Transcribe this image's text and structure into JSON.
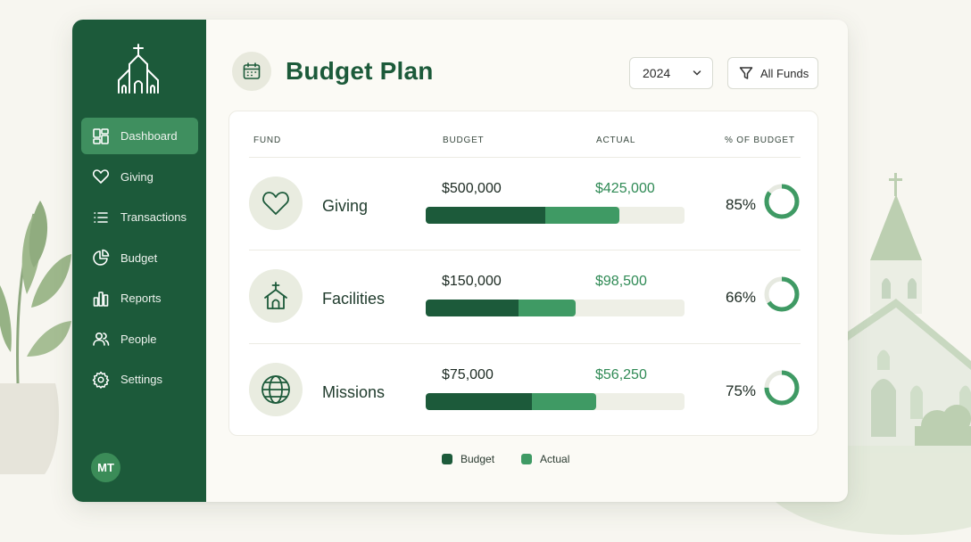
{
  "colors": {
    "sidebar": "#1c5a3a",
    "active_nav": "#3f8f5f",
    "budget": "#1c5a3a",
    "actual": "#3f9a64",
    "track": "#eeefe6"
  },
  "sidebar": {
    "logo_icon": "church-icon",
    "items": [
      {
        "label": "Dashboard",
        "icon": "dashboard-icon",
        "active": true
      },
      {
        "label": "Giving",
        "icon": "heart-icon",
        "active": false
      },
      {
        "label": "Transactions",
        "icon": "list-icon",
        "active": false
      },
      {
        "label": "Budget",
        "icon": "pie-chart-icon",
        "active": false
      },
      {
        "label": "Reports",
        "icon": "bar-chart-icon",
        "active": false
      },
      {
        "label": "People",
        "icon": "people-icon",
        "active": false
      },
      {
        "label": "Settings",
        "icon": "gear-icon",
        "active": false
      }
    ],
    "avatar_initials": "MT"
  },
  "header": {
    "icon": "calendar-icon",
    "title": "Budget Plan",
    "year": "2024",
    "filter_label": "All Funds"
  },
  "table": {
    "columns": [
      "FUND",
      "BUDGET",
      "ACTUAL",
      "% OF BUDGET"
    ],
    "rows": [
      {
        "fund": "Giving",
        "icon": "heart-icon",
        "budget": "$500,000",
        "actual": "$425,000",
        "pct_label": "85%",
        "pct": 0.85
      },
      {
        "fund": "Facilities",
        "icon": "church-icon",
        "budget": "$150,000",
        "actual": "$98,500",
        "pct_label": "66%",
        "pct": 0.66
      },
      {
        "fund": "Missions",
        "icon": "globe-icon",
        "budget": "$75,000",
        "actual": "$56,250",
        "pct_label": "75%",
        "pct": 0.75
      }
    ]
  },
  "legend": {
    "budget": "Budget",
    "actual": "Actual"
  }
}
